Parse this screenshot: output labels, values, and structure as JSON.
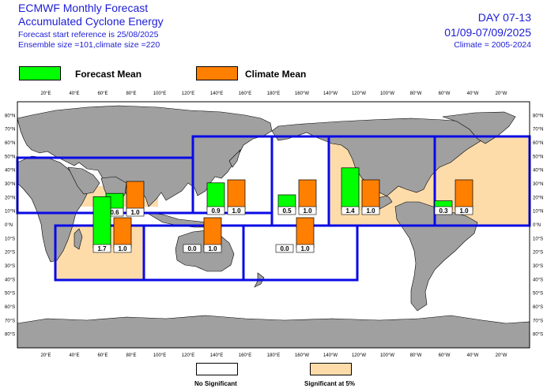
{
  "header": {
    "title_line1": "ECMWF Monthly Forecast",
    "title_line2": "Accumulated Cyclone Energy",
    "subtitle_line1": "Forecast start reference is 25/08/2025",
    "subtitle_line2": "Ensemble size =101,climate size =220",
    "day_label": "DAY 07-13",
    "date_range": "01/09-07/09/2025",
    "climate_period": "Climate = 2005-2024"
  },
  "legend": {
    "forecast": {
      "label": "Forecast Mean",
      "color": "#00ff00"
    },
    "climate": {
      "label": "Climate Mean",
      "color": "#ff7f00"
    }
  },
  "footer_legend": {
    "no_signif": {
      "label": "No Significant",
      "color": "#ffffff"
    },
    "signif": {
      "label": "Significant at 5%",
      "color": "#fddcaa"
    }
  },
  "colors": {
    "ocean": "#ffffff",
    "land": "#a0a0a0",
    "box": "#0a0ae6",
    "signif_fill": "#fddcaa",
    "frame": "#000000"
  },
  "chart_data": {
    "type": "bar",
    "map_projection": "plate carree, longitude 0 to 360 (Greenwich-centred start at 0E), latitude 90S to 90N",
    "x_tick_labels": [
      "20°E",
      "40°E",
      "60°E",
      "80°E",
      "100°E",
      "120°E",
      "140°E",
      "160°E",
      "180°E",
      "160°W",
      "140°W",
      "120°W",
      "100°W",
      "80°W",
      "60°W",
      "40°W",
      "20°W"
    ],
    "y_tick_labels": [
      "80°N",
      "70°N",
      "60°N",
      "50°N",
      "40°N",
      "30°N",
      "20°N",
      "10°N",
      "0°N",
      "10°S",
      "20°S",
      "30°S",
      "40°S",
      "50°S",
      "60°S",
      "70°S",
      "80°S"
    ],
    "series_names": [
      "Forecast Mean",
      "Climate Mean"
    ],
    "regions": [
      {
        "id": "north-indian",
        "forecast": 0.6,
        "climate": 1.0,
        "forecast_label": "0.6",
        "climate_label": "1.0",
        "significant": true
      },
      {
        "id": "south-west-indian",
        "forecast": 1.7,
        "climate": 1.0,
        "forecast_label": "1.7",
        "climate_label": "1.0",
        "significant": true
      },
      {
        "id": "australian",
        "forecast": 0.0,
        "climate": 1.0,
        "forecast_label": "0.0",
        "climate_label": "1.0",
        "significant": false
      },
      {
        "id": "south-pacific",
        "forecast": 0.0,
        "climate": 1.0,
        "forecast_label": "0.0",
        "climate_label": "1.0",
        "significant": false
      },
      {
        "id": "western-north-pacific",
        "forecast": 0.9,
        "climate": 1.0,
        "forecast_label": "0.9",
        "climate_label": "1.0",
        "significant": false
      },
      {
        "id": "central-north-pacific",
        "forecast": 0.5,
        "climate": 1.0,
        "forecast_label": "0.5",
        "climate_label": "1.0",
        "significant": false
      },
      {
        "id": "eastern-north-pacific",
        "forecast": 1.4,
        "climate": 1.0,
        "forecast_label": "1.4",
        "climate_label": "1.0",
        "significant": true
      },
      {
        "id": "north-atlantic",
        "forecast": 0.3,
        "climate": 1.0,
        "forecast_label": "0.3",
        "climate_label": "1.0",
        "significant": true
      }
    ]
  }
}
